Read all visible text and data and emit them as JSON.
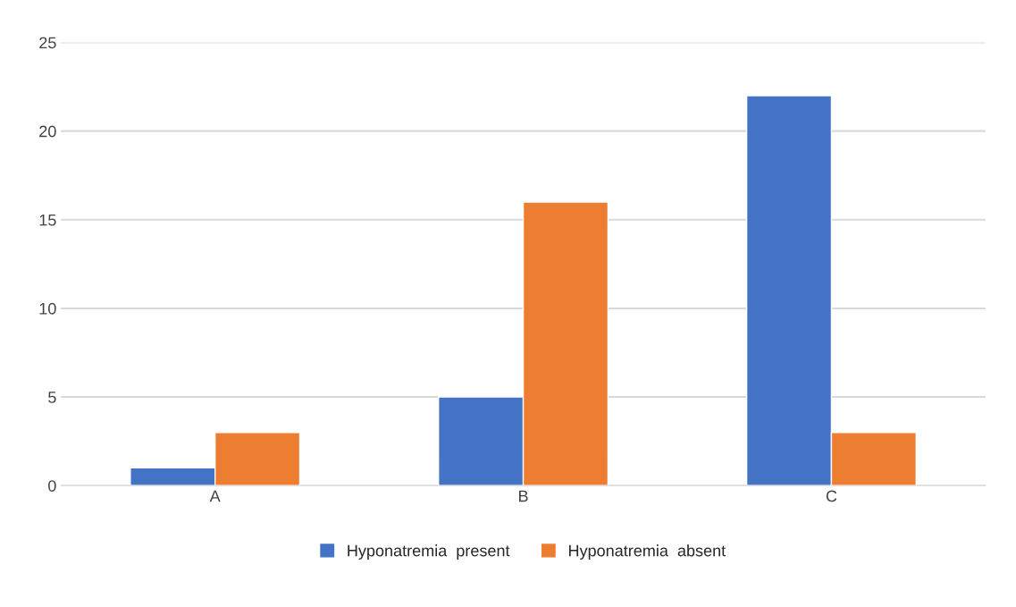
{
  "chart_data": {
    "type": "bar",
    "categories": [
      "A",
      "B",
      "C"
    ],
    "series": [
      {
        "name": "Hyponatremia  present",
        "color": "#4472c4",
        "values": [
          1,
          5,
          22
        ]
      },
      {
        "name": "Hyponatremia  absent",
        "color": "#ed7d31",
        "values": [
          3,
          16,
          3
        ]
      }
    ],
    "ylim": [
      0,
      25
    ],
    "yticks": [
      0,
      5,
      10,
      15,
      20,
      25
    ],
    "grid": "y",
    "legend": "bottom"
  }
}
